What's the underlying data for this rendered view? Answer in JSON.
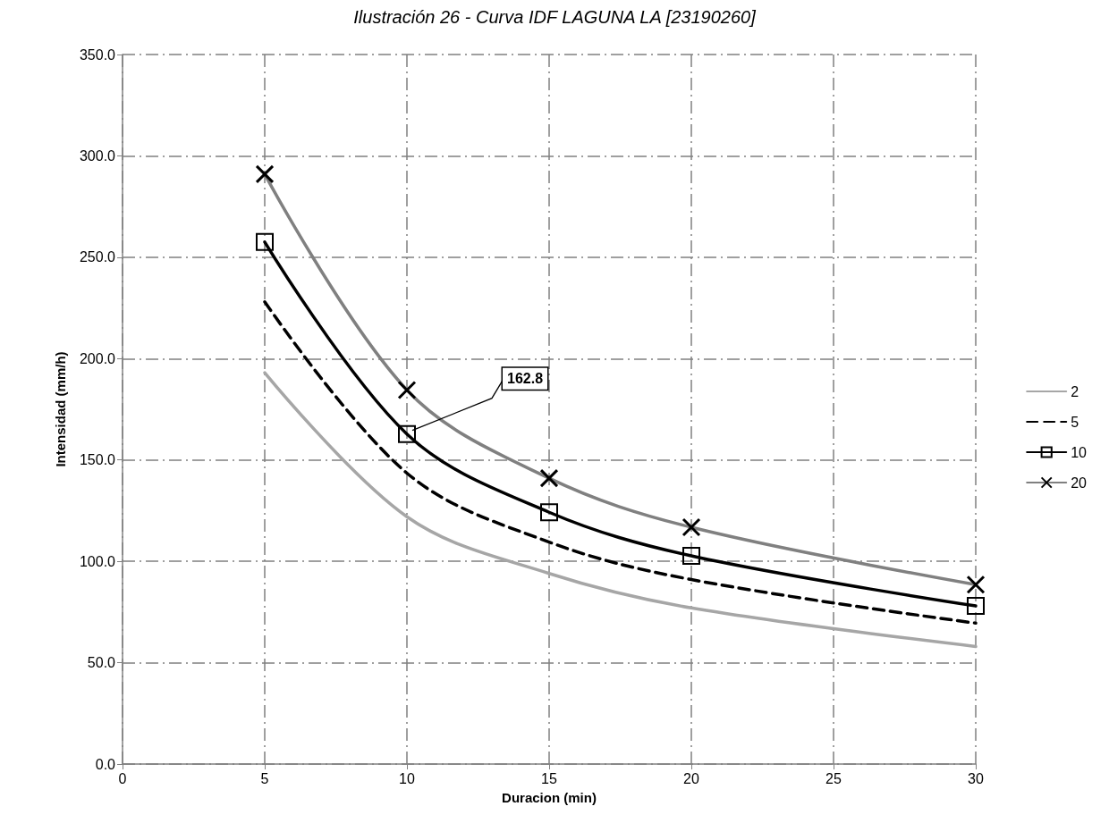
{
  "chart_data": {
    "type": "line",
    "title": "Ilustración 26 - Curva IDF LAGUNA LA [23190260]",
    "xlabel": "Duracion (min)",
    "ylabel": "Intensidad (mm/h)",
    "x": [
      5,
      10,
      15,
      20,
      30
    ],
    "series": [
      {
        "name": "2",
        "color": "#a6a6a6",
        "marker": "none",
        "line_style": "solid",
        "values": [
          193,
          122,
          94,
          77,
          58
        ]
      },
      {
        "name": "5",
        "color": "#000000",
        "marker": "none",
        "line_style": "dashed",
        "values": [
          228,
          143.5,
          109.5,
          91,
          69.5
        ]
      },
      {
        "name": "10",
        "color": "#000000",
        "marker": "square",
        "line_style": "solid",
        "values": [
          257.5,
          162.8,
          124.2,
          102.7,
          78
        ]
      },
      {
        "name": "20",
        "color": "#808080",
        "marker": "cross",
        "line_style": "solid",
        "values": [
          291,
          184.5,
          141,
          116.8,
          88.5
        ]
      }
    ],
    "xlim": [
      0,
      30
    ],
    "xticks": [
      0,
      5,
      10,
      15,
      20,
      25,
      30
    ],
    "ylim": [
      0,
      350
    ],
    "yticks": [
      {
        "value": 0,
        "label": "0.0"
      },
      {
        "value": 50,
        "label": "50.0"
      },
      {
        "value": 100,
        "label": "100.0"
      },
      {
        "value": 150,
        "label": "150.0"
      },
      {
        "value": 200,
        "label": "200.0"
      },
      {
        "value": 250,
        "label": "250.0"
      },
      {
        "value": 300,
        "label": "300.0"
      },
      {
        "value": 350,
        "label": "350.0"
      }
    ],
    "grid": true,
    "legend": "right",
    "annotations": [
      {
        "text": "162.8",
        "x": 10,
        "y": 162.8
      }
    ]
  }
}
